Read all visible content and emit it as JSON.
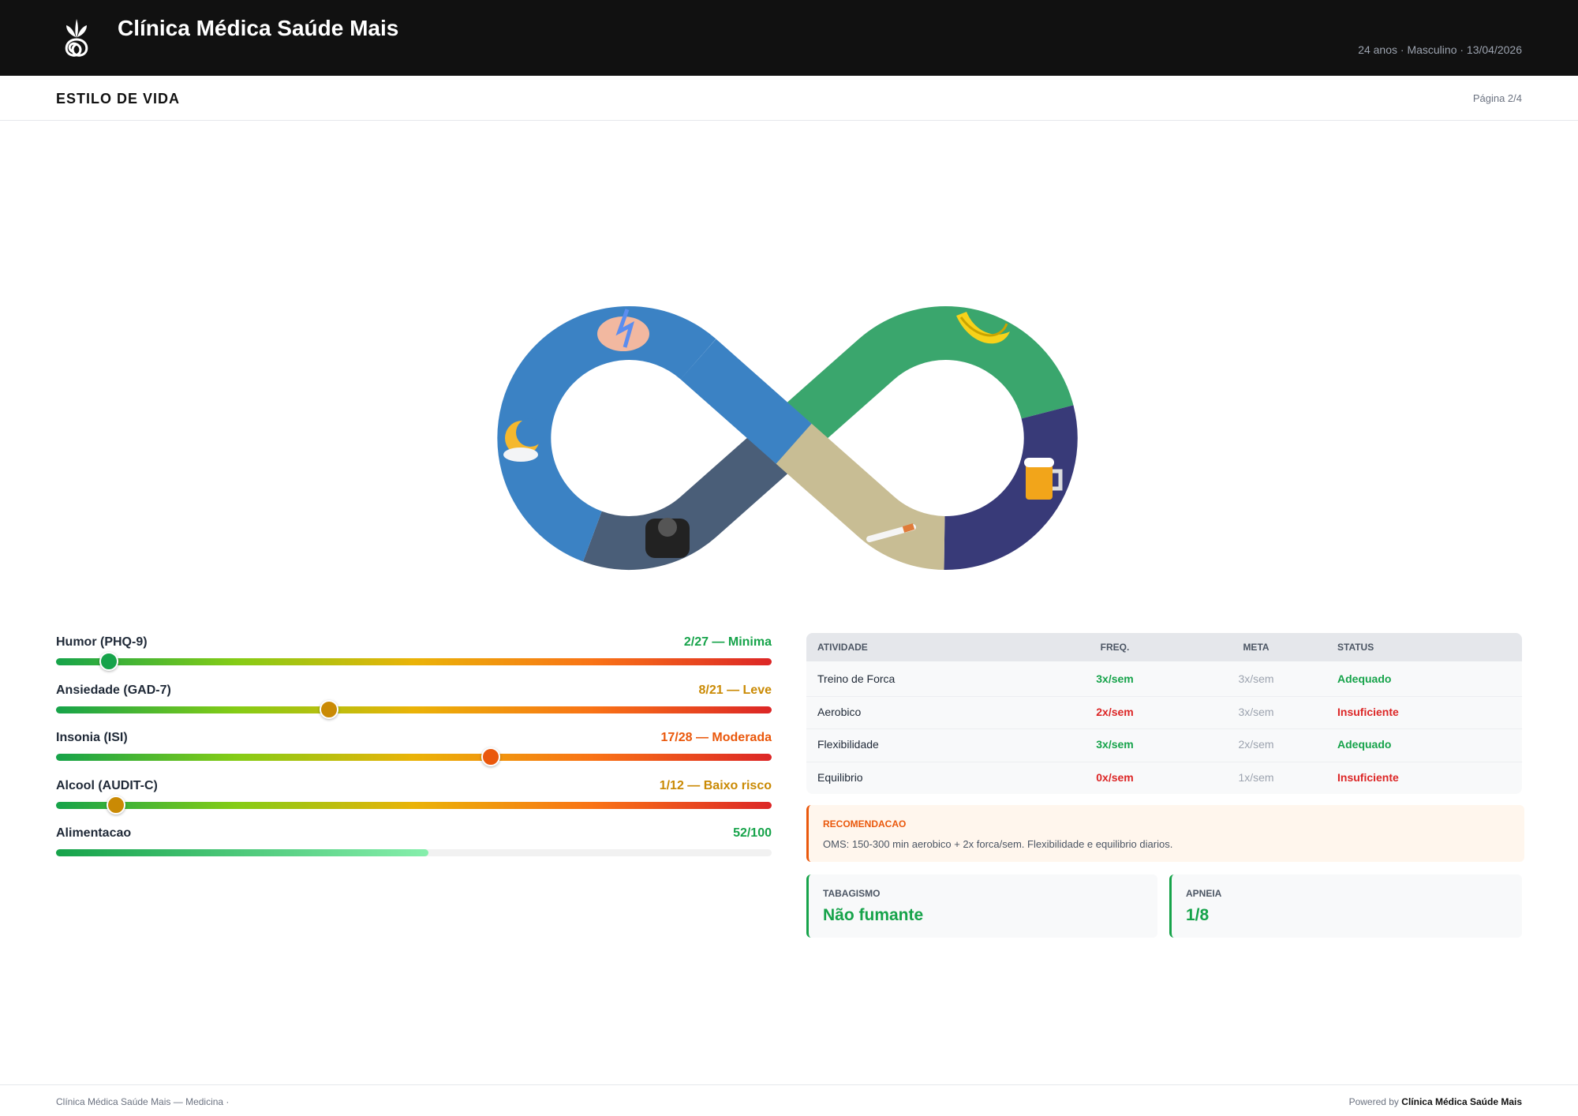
{
  "header": {
    "title": "Clínica Médica Saúde Mais",
    "meta": "24 anos · Masculino · 13/04/2026"
  },
  "section": {
    "title": "ESTILO DE VIDA",
    "page": "Página 2/4"
  },
  "scores": [
    {
      "label": "Humor (PHQ-9)",
      "value": 2,
      "max": 27,
      "value_label": "2/27 — Minima",
      "color": "#16a34a"
    },
    {
      "label": "Ansiedade (GAD-7)",
      "value": 8,
      "max": 21,
      "value_label": "8/21 — Leve",
      "color": "#ca8a04"
    },
    {
      "label": "Insonia (ISI)",
      "value": 17,
      "max": 28,
      "value_label": "17/28 — Moderada",
      "color": "#ea580c"
    },
    {
      "label": "Alcool (AUDIT-C)",
      "value": 1,
      "max": 12,
      "value_label": "1/12 — Baixo risco",
      "color": "#ca8a04"
    },
    {
      "label": "Alimentacao",
      "value": 52,
      "max": 100,
      "value_label": "52/100",
      "color": "#16a34a",
      "style": "fill"
    }
  ],
  "activity_table": {
    "columns": [
      "ATIVIDADE",
      "FREQ.",
      "META",
      "STATUS"
    ],
    "rows": [
      [
        "Treino de Forca",
        "3x/sem",
        "3x/sem",
        "Adequado"
      ],
      [
        "Aerobico",
        "2x/sem",
        "3x/sem",
        "Insuficiente"
      ],
      [
        "Flexibilidade",
        "3x/sem",
        "2x/sem",
        "Adequado"
      ],
      [
        "Equilibrio",
        "0x/sem",
        "1x/sem",
        "Insuficiente"
      ]
    ],
    "row_colors": [
      "#16a34a",
      "#dc2626",
      "#16a34a",
      "#dc2626"
    ]
  },
  "recommendation": {
    "title": "RECOMENDACAO",
    "text": "OMS: 150-300 min aerobico + 2x forca/sem. Flexibilidade e equilibrio diarios."
  },
  "cards": [
    {
      "label": "TABAGISMO",
      "value": "Não fumante"
    },
    {
      "label": "APNEIA",
      "value": "1/8"
    }
  ],
  "footer": {
    "left": "Clínica Médica Saúde Mais — Medicina ·",
    "powered_by": "Powered by",
    "brand": "Clínica Médica Saúde Mais"
  }
}
